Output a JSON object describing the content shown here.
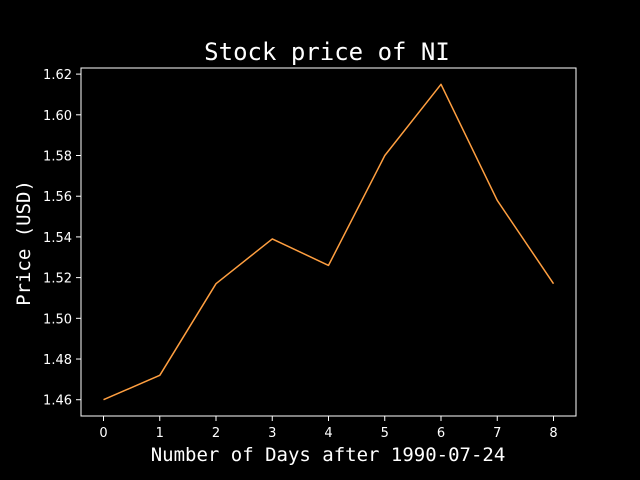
{
  "chart_data": {
    "type": "line",
    "title": "Stock price of NI",
    "xlabel": "Number of Days after 1990-07-24",
    "ylabel": "Price (USD)",
    "x": [
      0,
      1,
      2,
      3,
      4,
      5,
      6,
      7,
      8
    ],
    "series": [
      {
        "values": [
          1.46,
          1.472,
          1.517,
          1.539,
          1.526,
          1.58,
          1.615,
          1.558,
          1.517
        ]
      }
    ],
    "xlim": [
      -0.4,
      8.4
    ],
    "ylim": [
      1.452,
      1.623
    ],
    "xticks": [
      "0",
      "1",
      "2",
      "3",
      "4",
      "5",
      "6",
      "7",
      "8"
    ],
    "yticks": [
      "1.46",
      "1.48",
      "1.50",
      "1.52",
      "1.54",
      "1.56",
      "1.58",
      "1.60",
      "1.62"
    ],
    "grid": false,
    "colors": {
      "background": "#000000",
      "axes": "#ffffff",
      "line": "#ff9f40"
    }
  }
}
